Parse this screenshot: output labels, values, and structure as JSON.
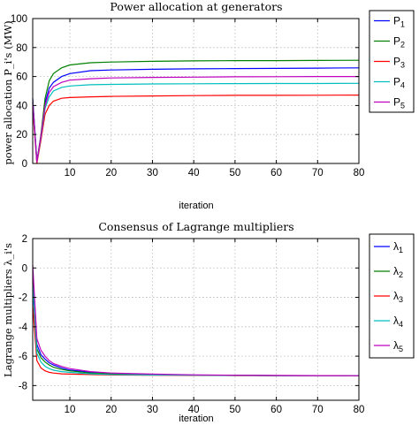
{
  "chart_data": [
    {
      "type": "line",
      "title": "Power allocation at generators",
      "xlabel": "iteration",
      "ylabel": "power allocation P_i's (MW)",
      "xlim": [
        1,
        80
      ],
      "ylim": [
        0,
        100
      ],
      "xticks": [
        "10",
        "20",
        "30",
        "40",
        "50",
        "60",
        "70",
        "80"
      ],
      "yticks": [
        "0",
        "20",
        "40",
        "60",
        "80",
        "100"
      ],
      "grid": true,
      "legend_position": "right",
      "series": [
        {
          "name": "P",
          "sub": "1",
          "color": "#0000ff",
          "x": [
            1,
            2,
            3,
            4,
            5,
            6,
            8,
            10,
            15,
            20,
            30,
            40,
            50,
            60,
            70,
            80
          ],
          "y": [
            45,
            2,
            18,
            42,
            52,
            56,
            60,
            62,
            64,
            64.5,
            65,
            65.3,
            65.5,
            65.6,
            65.8,
            66
          ]
        },
        {
          "name": "P",
          "sub": "2",
          "color": "#008000",
          "x": [
            1,
            2,
            3,
            4,
            5,
            6,
            8,
            10,
            15,
            20,
            30,
            40,
            50,
            60,
            70,
            80
          ],
          "y": [
            44,
            1,
            20,
            45,
            57,
            62,
            66,
            68,
            69.5,
            70,
            70.5,
            70.8,
            71,
            71,
            71.1,
            71.2
          ]
        },
        {
          "name": "P",
          "sub": "3",
          "color": "#ff0000",
          "x": [
            1,
            2,
            3,
            4,
            5,
            6,
            8,
            10,
            15,
            20,
            30,
            40,
            50,
            60,
            70,
            80
          ],
          "y": [
            38,
            0,
            16,
            34,
            40,
            43,
            45,
            45.5,
            46,
            46.3,
            46.6,
            46.8,
            47,
            47,
            47.1,
            47.2
          ]
        },
        {
          "name": "P",
          "sub": "4",
          "color": "#00bfbf",
          "x": [
            1,
            2,
            3,
            4,
            5,
            6,
            8,
            10,
            15,
            20,
            30,
            40,
            50,
            60,
            70,
            80
          ],
          "y": [
            42,
            1,
            18,
            38,
            46,
            50,
            52.5,
            53.5,
            54.3,
            54.6,
            54.9,
            55,
            55.1,
            55.2,
            55.2,
            55.3
          ]
        },
        {
          "name": "P",
          "sub": "5",
          "color": "#bf00bf",
          "x": [
            1,
            2,
            3,
            4,
            5,
            6,
            8,
            10,
            15,
            20,
            30,
            40,
            50,
            60,
            70,
            80
          ],
          "y": [
            43,
            1,
            19,
            40,
            49,
            53,
            56,
            57.5,
            58.5,
            59,
            59.4,
            59.6,
            59.8,
            59.9,
            60,
            60
          ]
        }
      ]
    },
    {
      "type": "line",
      "title": "Consensus of Lagrange multipliers",
      "xlabel": "iteration",
      "ylabel": "Lagrange multipliers λ_i's",
      "xlim": [
        1,
        80
      ],
      "ylim": [
        -9,
        2
      ],
      "xticks": [
        "10",
        "20",
        "30",
        "40",
        "50",
        "60",
        "70",
        "80"
      ],
      "yticks": [
        "-8",
        "-6",
        "-4",
        "-2",
        "0",
        "2"
      ],
      "grid": true,
      "legend_position": "right",
      "series": [
        {
          "name": "λ",
          "sub": "1",
          "color": "#0000ff",
          "x": [
            1,
            2,
            3,
            4,
            5,
            6,
            8,
            10,
            15,
            20,
            30,
            40,
            50,
            60,
            70,
            80
          ],
          "y": [
            -1.5,
            -5.2,
            -5.9,
            -6.2,
            -6.45,
            -6.6,
            -6.8,
            -6.95,
            -7.1,
            -7.2,
            -7.25,
            -7.3,
            -7.3,
            -7.32,
            -7.33,
            -7.33
          ]
        },
        {
          "name": "λ",
          "sub": "2",
          "color": "#008000",
          "x": [
            1,
            2,
            3,
            4,
            5,
            6,
            8,
            10,
            15,
            20,
            30,
            40,
            50,
            60,
            70,
            80
          ],
          "y": [
            -0.8,
            -5.5,
            -6.1,
            -6.4,
            -6.6,
            -6.75,
            -6.9,
            -7.0,
            -7.15,
            -7.2,
            -7.25,
            -7.3,
            -7.3,
            -7.32,
            -7.33,
            -7.33
          ]
        },
        {
          "name": "λ",
          "sub": "3",
          "color": "#ff0000",
          "x": [
            1,
            2,
            3,
            4,
            5,
            6,
            8,
            10,
            15,
            20,
            30,
            40,
            50,
            60,
            70,
            80
          ],
          "y": [
            -2.5,
            -6.3,
            -6.8,
            -7.0,
            -7.1,
            -7.15,
            -7.2,
            -7.22,
            -7.25,
            -7.28,
            -7.3,
            -7.31,
            -7.32,
            -7.33,
            -7.33,
            -7.33
          ]
        },
        {
          "name": "λ",
          "sub": "4",
          "color": "#00bfbf",
          "x": [
            1,
            2,
            3,
            4,
            5,
            6,
            8,
            10,
            15,
            20,
            30,
            40,
            50,
            60,
            70,
            80
          ],
          "y": [
            -1.0,
            -5.8,
            -6.4,
            -6.7,
            -6.85,
            -6.95,
            -7.05,
            -7.1,
            -7.2,
            -7.25,
            -7.28,
            -7.3,
            -7.31,
            -7.32,
            -7.33,
            -7.33
          ]
        },
        {
          "name": "λ",
          "sub": "5",
          "color": "#bf00bf",
          "x": [
            1,
            2,
            3,
            4,
            5,
            6,
            8,
            10,
            15,
            20,
            30,
            40,
            50,
            60,
            70,
            80
          ],
          "y": [
            0.2,
            -4.8,
            -5.6,
            -6.0,
            -6.3,
            -6.5,
            -6.7,
            -6.85,
            -7.05,
            -7.15,
            -7.22,
            -7.27,
            -7.3,
            -7.31,
            -7.32,
            -7.33
          ]
        }
      ]
    }
  ]
}
